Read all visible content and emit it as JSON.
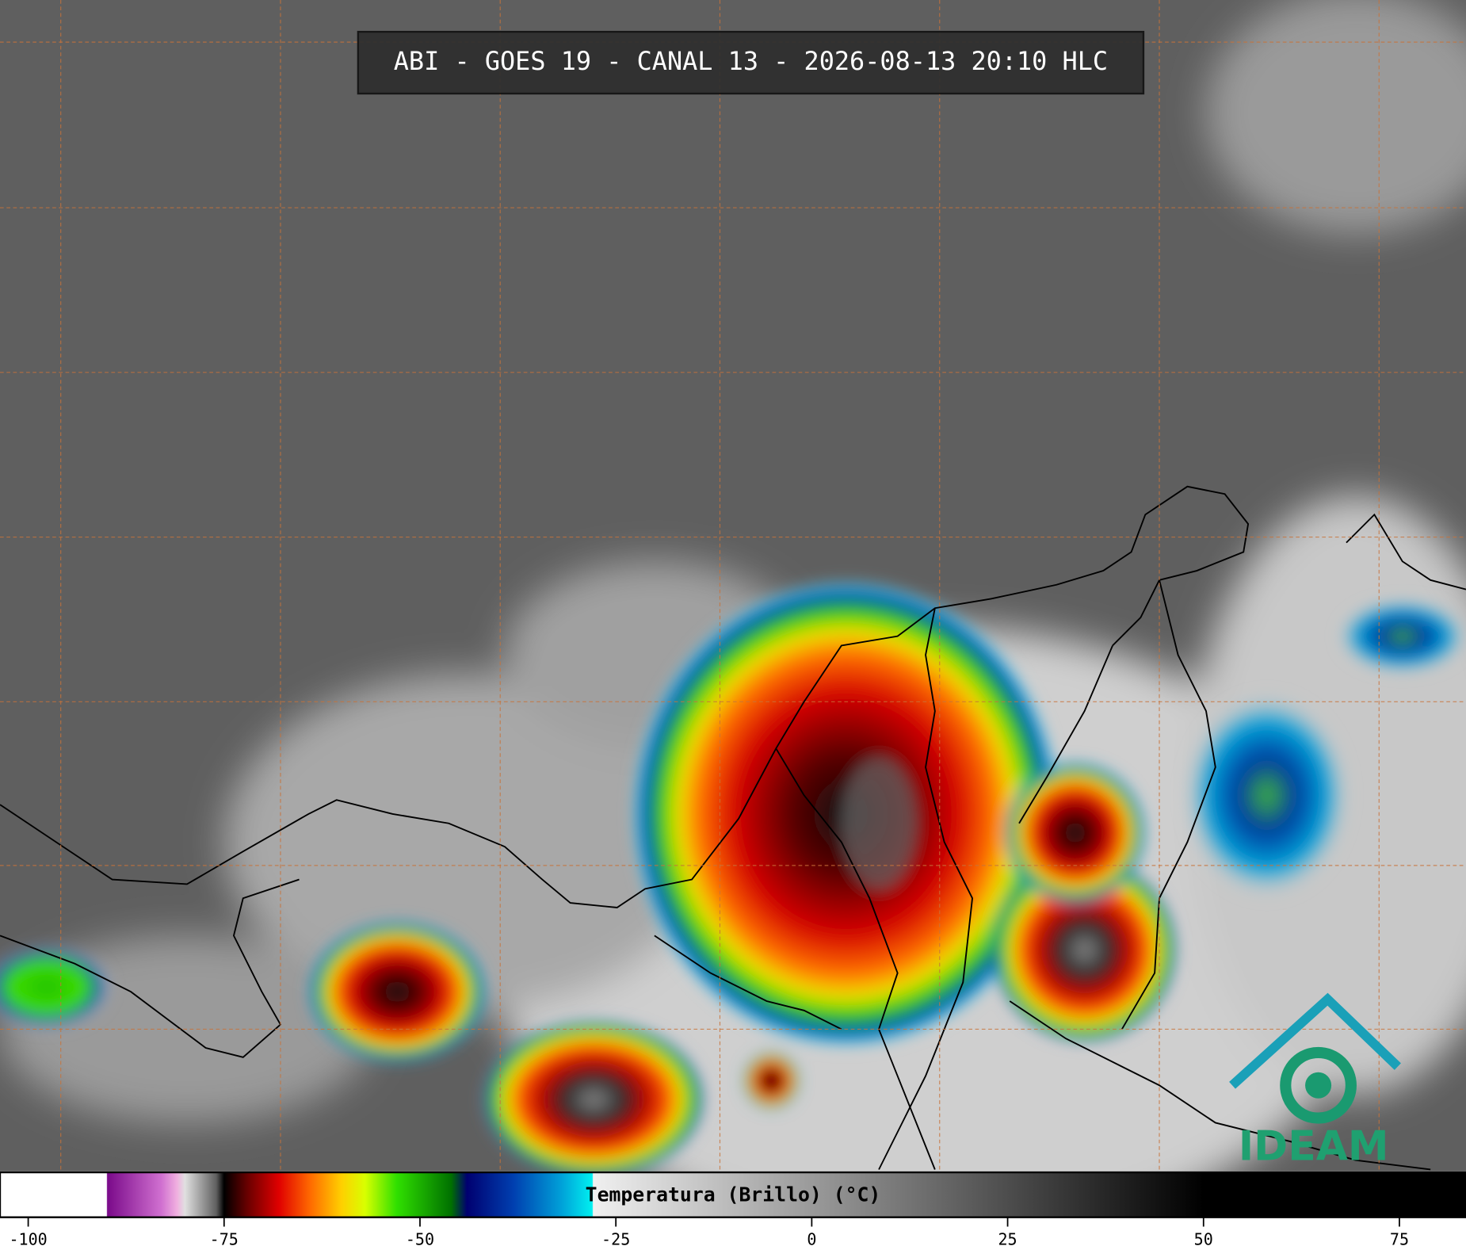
{
  "header": {
    "title": "ABI - GOES 19 - CANAL 13 - 2026-08-13 20:10 HLC"
  },
  "logo": {
    "text": "IDEAM"
  },
  "colorbar": {
    "label": "Temperatura (Brillo) (°C)",
    "xlim": [
      -103.6,
      83.5
    ],
    "xticks": [
      -100,
      -75,
      -50,
      -25,
      0,
      25,
      50,
      75
    ],
    "stops": [
      {
        "value": -103.6,
        "color": "#ffffff"
      },
      {
        "value": -90,
        "color": "#ffffff"
      },
      {
        "value": -89.9,
        "color": "#7a0a8a"
      },
      {
        "value": -83,
        "color": "#d070d0"
      },
      {
        "value": -81,
        "color": "#f0b0e0"
      },
      {
        "value": -80,
        "color": "#e0e0e0"
      },
      {
        "value": -76,
        "color": "#606060"
      },
      {
        "value": -75,
        "color": "#000000"
      },
      {
        "value": -72,
        "color": "#6a0000"
      },
      {
        "value": -68,
        "color": "#e00000"
      },
      {
        "value": -64,
        "color": "#ff6a00"
      },
      {
        "value": -60,
        "color": "#ffd000"
      },
      {
        "value": -57,
        "color": "#d8ff00"
      },
      {
        "value": -53,
        "color": "#30e000"
      },
      {
        "value": -46,
        "color": "#007000"
      },
      {
        "value": -44,
        "color": "#000070"
      },
      {
        "value": -38,
        "color": "#0040b0"
      },
      {
        "value": -32,
        "color": "#00a0d8"
      },
      {
        "value": -28,
        "color": "#00f0f0"
      },
      {
        "value": -27.9,
        "color": "#f0f0f0"
      },
      {
        "value": 50,
        "color": "#000000"
      },
      {
        "value": 83.5,
        "color": "#000000"
      }
    ]
  }
}
